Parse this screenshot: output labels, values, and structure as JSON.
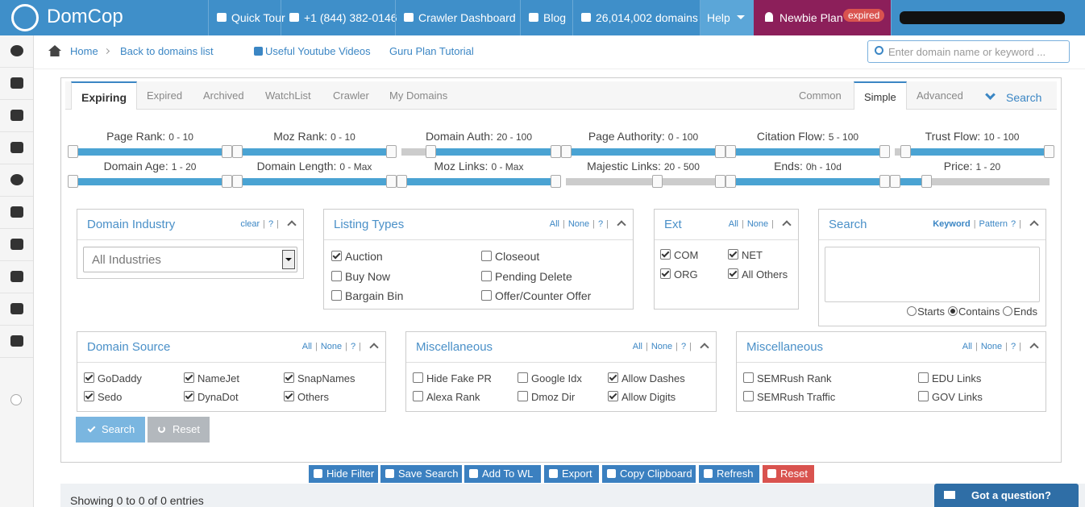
{
  "nav": {
    "brand": "DomCop",
    "items": [
      "Quick Tour",
      "+1 (844) 382-0146",
      "Crawler Dashboard",
      "Blog",
      "26,014,002 domains",
      "Help"
    ],
    "plan": "Newbie Plan",
    "plan_badge": "expired"
  },
  "breadcrumb": {
    "links": [
      "Home",
      "Back to domains list",
      "Useful Youtube Videos",
      "Guru Plan Tutorial"
    ],
    "search_placeholder": "Enter domain name or keyword ..."
  },
  "tabs": {
    "left": [
      "Expiring",
      "Expired",
      "Archived",
      "WatchList",
      "Crawler",
      "My Domains"
    ],
    "right": [
      "Common",
      "Simple",
      "Advanced"
    ],
    "search": "Search"
  },
  "sliders": [
    {
      "label": "Page Rank:",
      "range": "0 - 10"
    },
    {
      "label": "Moz Rank:",
      "range": "0 - 10"
    },
    {
      "label": "Domain Auth:",
      "range": "20 - 100"
    },
    {
      "label": "Page Authority:",
      "range": "0 - 100"
    },
    {
      "label": "Citation Flow:",
      "range": "5 - 100"
    },
    {
      "label": "Trust Flow:",
      "range": "10 - 100"
    },
    {
      "label": "Domain Age:",
      "range": "1 - 20"
    },
    {
      "label": "Domain Length:",
      "range": "0 - Max"
    },
    {
      "label": "Moz Links:",
      "range": "0 - Max"
    },
    {
      "label": "Majestic Links:",
      "range": "20 - 500"
    },
    {
      "label": "Ends:",
      "range": "0h - 10d"
    },
    {
      "label": "Price:",
      "range": "1 - 20"
    }
  ],
  "panels": [
    {
      "title": "Domain Industry",
      "controls": [
        "clear",
        "|",
        "?",
        "|"
      ],
      "select": "All Industries"
    },
    {
      "title": "Listing Types",
      "controls": [
        "All",
        "|",
        "None",
        "|",
        "?",
        "|"
      ],
      "options": [
        {
          "label": "Auction",
          "checked": true
        },
        {
          "label": "Closeout",
          "checked": false
        },
        {
          "label": "Buy Now",
          "checked": false
        },
        {
          "label": "Pending Delete",
          "checked": false
        },
        {
          "label": "Bargain Bin",
          "checked": false
        },
        {
          "label": "Offer/Counter Offer",
          "checked": false
        }
      ]
    },
    {
      "title": "Ext",
      "controls": [
        "All",
        "|",
        "None",
        "|"
      ],
      "options": [
        {
          "label": "COM",
          "checked": true
        },
        {
          "label": "NET",
          "checked": true
        },
        {
          "label": "ORG",
          "checked": true
        },
        {
          "label": "All Others",
          "checked": true
        }
      ]
    },
    {
      "title": "Search",
      "controls": [
        "Keyword",
        "|",
        "Pattern",
        "?",
        "|"
      ],
      "radios": [
        {
          "label": "Starts",
          "checked": false
        },
        {
          "label": "Contains",
          "checked": true
        },
        {
          "label": "Ends",
          "checked": false
        }
      ]
    },
    {
      "title": "Domain Source",
      "controls": [
        "All",
        "|",
        "None",
        "|",
        "?",
        "|"
      ],
      "options": [
        {
          "label": "GoDaddy",
          "checked": true
        },
        {
          "label": "NameJet",
          "checked": true
        },
        {
          "label": "SnapNames",
          "checked": true
        },
        {
          "label": "Sedo",
          "checked": true
        },
        {
          "label": "DynaDot",
          "checked": true
        },
        {
          "label": "Others",
          "checked": true
        }
      ]
    },
    {
      "title": "Miscellaneous",
      "controls": [
        "All",
        "|",
        "None",
        "|",
        "?",
        "|"
      ],
      "options": [
        {
          "label": "Hide Fake PR",
          "checked": false
        },
        {
          "label": "Google Idx",
          "checked": false
        },
        {
          "label": "Allow Dashes",
          "checked": true
        },
        {
          "label": "Alexa Rank",
          "checked": false
        },
        {
          "label": "Dmoz Dir",
          "checked": false
        },
        {
          "label": "Allow Digits",
          "checked": true
        }
      ]
    },
    {
      "title": "Miscellaneous",
      "controls": [
        "All",
        "|",
        "None",
        "|",
        "?",
        "|"
      ],
      "options": [
        {
          "label": "SEMRush Rank",
          "checked": false
        },
        {
          "label": "EDU Links",
          "checked": false
        },
        {
          "label": "SEMRush Traffic",
          "checked": false
        },
        {
          "label": "GOV Links",
          "checked": false
        }
      ]
    }
  ],
  "buttons": {
    "search": "Search",
    "reset": "Reset"
  },
  "toolbar": [
    "Hide Filter",
    "Save Search",
    "Add To WL",
    "Export",
    "Copy Clipboard",
    "Refresh",
    "Reset"
  ],
  "footer": {
    "info": "Showing 0 to 0 of 0 entries",
    "chat": "Got a question?"
  }
}
